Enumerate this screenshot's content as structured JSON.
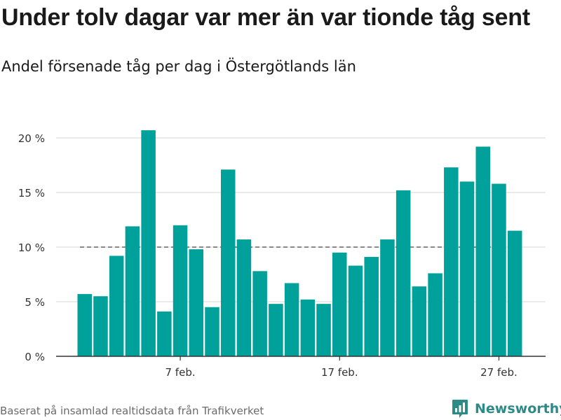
{
  "title": "Under tolv dagar var mer än var tionde tåg sent",
  "subtitle": "Andel försenade tåg per dag i Östergötlands län",
  "source": "Baserat på insamlad realtidsdata från Trafikverket",
  "brand": {
    "name": "Newsworthy",
    "icon": "newsworthy-logo-icon",
    "color": "#2c8b87"
  },
  "chart_data": {
    "type": "bar",
    "x": [
      "1 feb.",
      "2 feb.",
      "3 feb.",
      "4 feb.",
      "5 feb.",
      "6 feb.",
      "7 feb.",
      "8 feb.",
      "9 feb.",
      "10 feb.",
      "11 feb.",
      "12 feb.",
      "13 feb.",
      "14 feb.",
      "15 feb.",
      "16 feb.",
      "17 feb.",
      "18 feb.",
      "19 feb.",
      "20 feb.",
      "21 feb.",
      "22 feb.",
      "23 feb.",
      "24 feb.",
      "25 feb.",
      "26 feb.",
      "27 feb.",
      "28 feb."
    ],
    "values": [
      5.7,
      5.5,
      9.2,
      11.9,
      20.7,
      4.1,
      12.0,
      9.8,
      4.5,
      17.1,
      10.7,
      7.8,
      4.8,
      6.7,
      5.2,
      4.8,
      9.5,
      8.3,
      9.1,
      10.7,
      15.2,
      6.4,
      7.6,
      17.3,
      16.0,
      19.2,
      15.8,
      11.5
    ],
    "xticks": [
      "7 feb.",
      "17 feb.",
      "27 feb."
    ],
    "yticks": [
      "0 %",
      "5 %",
      "10 %",
      "15 %",
      "20 %"
    ],
    "ytick_values": [
      0,
      5,
      10,
      15,
      20
    ],
    "ylim": [
      0,
      22
    ],
    "reference_line": 10,
    "bar_color": "#00a19a",
    "reference_color": "#666666",
    "grid_color": "#dddddd",
    "grid": true
  }
}
